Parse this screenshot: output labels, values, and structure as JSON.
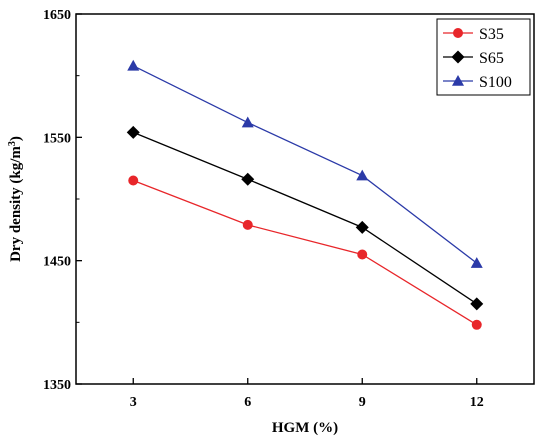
{
  "chart_data": {
    "type": "line",
    "x": [
      3,
      6,
      9,
      12
    ],
    "xlabel": "HGM (%)",
    "ylabel": {
      "main": "Dry density (kg/m",
      "sup": "3",
      "close": ")"
    },
    "xlim": [
      1.5,
      13.5
    ],
    "ylim": [
      1350,
      1650
    ],
    "xticks": [
      3,
      6,
      9,
      12
    ],
    "yticks": [
      1350,
      1450,
      1550,
      1650
    ],
    "grid": false,
    "legend_position": "top-right",
    "series": [
      {
        "name": "S35",
        "values": [
          1515,
          1479,
          1455,
          1398
        ],
        "color": "#e8262a",
        "marker": "circle"
      },
      {
        "name": "S65",
        "values": [
          1554,
          1516,
          1477,
          1415
        ],
        "color": "#000000",
        "marker": "diamond"
      },
      {
        "name": "S100",
        "values": [
          1608,
          1562,
          1519,
          1448
        ],
        "color": "#2b3aa8",
        "marker": "triangle"
      }
    ]
  }
}
